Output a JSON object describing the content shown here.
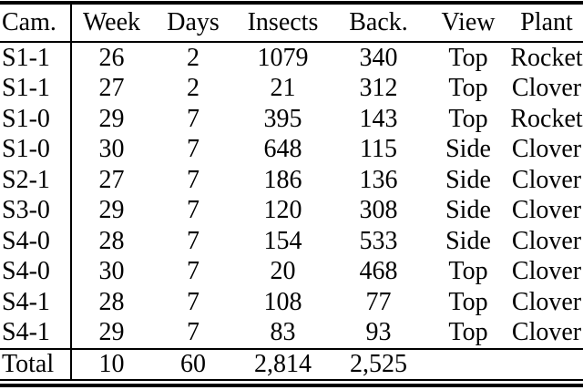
{
  "table": {
    "columns": [
      "Cam.",
      "Week",
      "Days",
      "Insects",
      "Back.",
      "View",
      "Plant"
    ],
    "rows": [
      [
        "S1-1",
        "26",
        "2",
        "1079",
        "340",
        "Top",
        "Rocket"
      ],
      [
        "S1-1",
        "27",
        "2",
        "21",
        "312",
        "Top",
        "Clover"
      ],
      [
        "S1-0",
        "29",
        "7",
        "395",
        "143",
        "Top",
        "Rocket"
      ],
      [
        "S1-0",
        "30",
        "7",
        "648",
        "115",
        "Side",
        "Clover"
      ],
      [
        "S2-1",
        "27",
        "7",
        "186",
        "136",
        "Side",
        "Clover"
      ],
      [
        "S3-0",
        "29",
        "7",
        "120",
        "308",
        "Side",
        "Clover"
      ],
      [
        "S4-0",
        "28",
        "7",
        "154",
        "533",
        "Side",
        "Clover"
      ],
      [
        "S4-0",
        "30",
        "7",
        "20",
        "468",
        "Top",
        "Clover"
      ],
      [
        "S4-1",
        "28",
        "7",
        "108",
        "77",
        "Top",
        "Clover"
      ],
      [
        "S4-1",
        "29",
        "7",
        "83",
        "93",
        "Top",
        "Clover"
      ]
    ],
    "total": [
      "Total",
      "10",
      "60",
      "2,814",
      "2,525",
      "",
      ""
    ]
  },
  "colors": {
    "background": "#ffffff",
    "text": "#000000",
    "rule": "#000000"
  }
}
